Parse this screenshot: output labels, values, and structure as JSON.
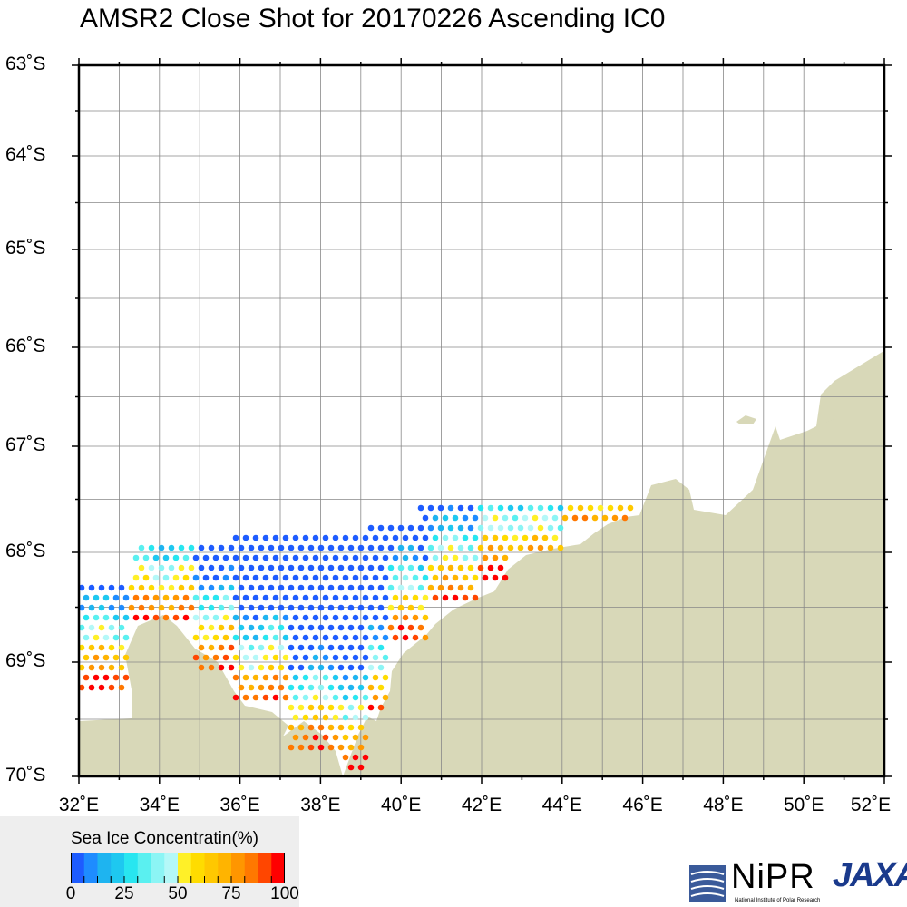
{
  "title": "AMSR2 Close Shot for 20170226 Ascending IC0",
  "map": {
    "lon_range": [
      32,
      52
    ],
    "lat_range": [
      -70,
      -63
    ],
    "lat_labels": [
      "63˚S",
      "64˚S",
      "65˚S",
      "66˚S",
      "67˚S",
      "68˚S",
      "69˚S",
      "70˚S"
    ],
    "lon_labels": [
      "32˚E",
      "34˚E",
      "36˚E",
      "38˚E",
      "40˚E",
      "42˚E",
      "44˚E",
      "46˚E",
      "48˚E",
      "50˚E",
      "52˚E"
    ],
    "land_color": "#d8d8b8",
    "grid_color": "#888888"
  },
  "legend": {
    "title": "Sea Ice Concentratin(%)",
    "ticks": [
      "0",
      "25",
      "50",
      "75",
      "100"
    ],
    "colors": [
      "#1e5cff",
      "#1e8cff",
      "#1eb4f0",
      "#1ec8f0",
      "#28e6f0",
      "#5af0f0",
      "#8cf5f5",
      "#b4f8f8",
      "#fff028",
      "#ffdc00",
      "#ffc800",
      "#ffb400",
      "#ff9600",
      "#ff7800",
      "#ff4600",
      "#ff0000"
    ]
  },
  "logos": {
    "nipr": "NiPR",
    "nipr_sub": "National Institute of Polar Research",
    "jaxa": "JAXA"
  }
}
